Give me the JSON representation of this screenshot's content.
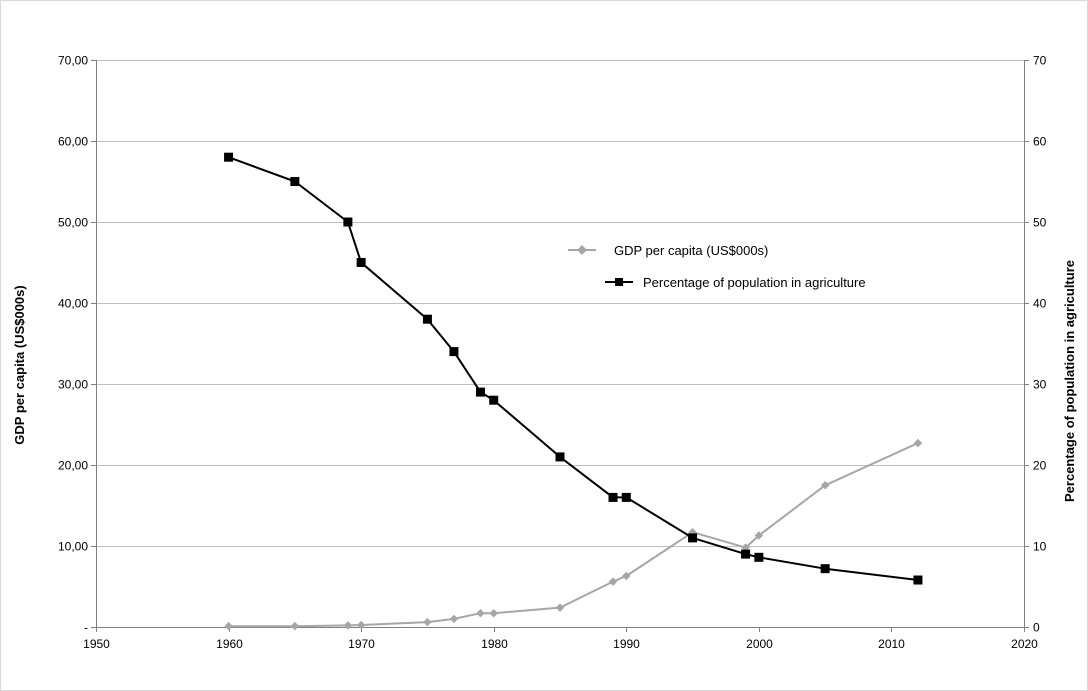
{
  "chart_data": {
    "type": "line",
    "title": "",
    "xlabel": "",
    "ylabel": "GDP per capita (US$000s)",
    "y2label": "Percentage of population in agriculture",
    "xlim": [
      1950,
      2020
    ],
    "ylim": [
      0,
      70
    ],
    "y2lim": [
      0,
      70
    ],
    "x_ticks": [
      "1950",
      "1960",
      "1970",
      "1980",
      "1990",
      "2000",
      "2010",
      "2020"
    ],
    "y_ticks": [
      "-",
      "10,00",
      "20,00",
      "30,00",
      "40,00",
      "50,00",
      "60,00",
      "70,00"
    ],
    "y2_ticks": [
      "0",
      "10",
      "20",
      "30",
      "40",
      "50",
      "60",
      "70"
    ],
    "grid": "horizontal",
    "legend_position": "center-right",
    "series": [
      {
        "name": "GDP per capita (US$000s)",
        "axis": "left",
        "marker": "diamond",
        "color": "#a6a6a6",
        "x": [
          1960,
          1965,
          1969,
          1970,
          1975,
          1977,
          1979,
          1980,
          1985,
          1989,
          1990,
          1995,
          1999,
          2000,
          2005,
          2012
        ],
        "values": [
          0.1,
          0.1,
          0.2,
          0.25,
          0.6,
          1.0,
          1.7,
          1.7,
          2.4,
          5.6,
          6.3,
          11.7,
          9.8,
          11.3,
          17.5,
          22.7
        ]
      },
      {
        "name": "Percentage of population in agriculture",
        "axis": "right",
        "marker": "square",
        "color": "#000000",
        "x": [
          1960,
          1965,
          1969,
          1970,
          1975,
          1977,
          1979,
          1980,
          1985,
          1989,
          1990,
          1995,
          1999,
          2000,
          2005,
          2012
        ],
        "values": [
          58,
          55,
          50,
          45,
          38,
          34,
          29,
          28,
          21,
          16,
          16,
          11,
          9,
          8.6,
          7.2,
          5.8
        ]
      }
    ]
  }
}
